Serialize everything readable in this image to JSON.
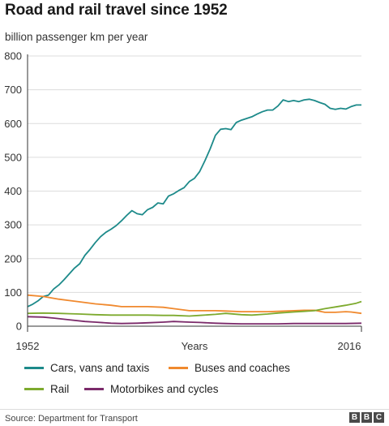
{
  "chart_data": {
    "type": "line",
    "title": "Road and rail travel since 1952",
    "ylabel": "billion passenger km per year",
    "xlabel": "Years",
    "x_start_label": "1952",
    "x_end_label": "2016",
    "xlim": [
      1952,
      2016
    ],
    "ylim": [
      0,
      800
    ],
    "yticks": [
      "0",
      "100",
      "200",
      "300",
      "400",
      "500",
      "600",
      "700",
      "800"
    ],
    "grid": true,
    "legend_position": "bottom",
    "source": "Source: Department for Transport",
    "series": [
      {
        "name": "Cars, vans and taxis",
        "color": "#1d8a8a",
        "points": [
          [
            1952,
            58
          ],
          [
            1953,
            65
          ],
          [
            1954,
            75
          ],
          [
            1955,
            88
          ],
          [
            1956,
            92
          ],
          [
            1957,
            110
          ],
          [
            1958,
            122
          ],
          [
            1959,
            138
          ],
          [
            1960,
            155
          ],
          [
            1961,
            172
          ],
          [
            1962,
            185
          ],
          [
            1963,
            210
          ],
          [
            1964,
            228
          ],
          [
            1965,
            248
          ],
          [
            1966,
            265
          ],
          [
            1967,
            278
          ],
          [
            1968,
            287
          ],
          [
            1969,
            298
          ],
          [
            1970,
            312
          ],
          [
            1971,
            328
          ],
          [
            1972,
            342
          ],
          [
            1973,
            333
          ],
          [
            1974,
            330
          ],
          [
            1975,
            345
          ],
          [
            1976,
            352
          ],
          [
            1977,
            365
          ],
          [
            1978,
            362
          ],
          [
            1979,
            385
          ],
          [
            1980,
            392
          ],
          [
            1981,
            402
          ],
          [
            1982,
            410
          ],
          [
            1983,
            428
          ],
          [
            1984,
            438
          ],
          [
            1985,
            458
          ],
          [
            1986,
            490
          ],
          [
            1987,
            525
          ],
          [
            1988,
            565
          ],
          [
            1989,
            583
          ],
          [
            1990,
            585
          ],
          [
            1991,
            582
          ],
          [
            1992,
            603
          ],
          [
            1993,
            610
          ],
          [
            1994,
            615
          ],
          [
            1995,
            620
          ],
          [
            1996,
            628
          ],
          [
            1997,
            635
          ],
          [
            1998,
            640
          ],
          [
            1999,
            640
          ],
          [
            2000,
            652
          ],
          [
            2001,
            670
          ],
          [
            2002,
            665
          ],
          [
            2003,
            668
          ],
          [
            2004,
            665
          ],
          [
            2005,
            670
          ],
          [
            2006,
            672
          ],
          [
            2007,
            668
          ],
          [
            2008,
            662
          ],
          [
            2009,
            657
          ],
          [
            2010,
            645
          ],
          [
            2011,
            642
          ],
          [
            2012,
            645
          ],
          [
            2013,
            643
          ],
          [
            2014,
            650
          ],
          [
            2015,
            655
          ],
          [
            2016,
            655
          ]
        ]
      },
      {
        "name": "Buses and coaches",
        "color": "#f0892e",
        "points": [
          [
            1952,
            92
          ],
          [
            1955,
            88
          ],
          [
            1958,
            80
          ],
          [
            1960,
            76
          ],
          [
            1962,
            72
          ],
          [
            1965,
            66
          ],
          [
            1968,
            62
          ],
          [
            1970,
            58
          ],
          [
            1973,
            58
          ],
          [
            1975,
            58
          ],
          [
            1978,
            56
          ],
          [
            1980,
            52
          ],
          [
            1983,
            46
          ],
          [
            1985,
            46
          ],
          [
            1988,
            46
          ],
          [
            1990,
            45
          ],
          [
            1993,
            43
          ],
          [
            1995,
            43
          ],
          [
            1998,
            43
          ],
          [
            2000,
            44
          ],
          [
            2003,
            46
          ],
          [
            2005,
            47
          ],
          [
            2007,
            47
          ],
          [
            2009,
            41
          ],
          [
            2011,
            41
          ],
          [
            2013,
            43
          ],
          [
            2014,
            42
          ],
          [
            2016,
            38
          ]
        ]
      },
      {
        "name": "Rail",
        "color": "#7daa2e",
        "points": [
          [
            1952,
            38
          ],
          [
            1955,
            39
          ],
          [
            1958,
            38
          ],
          [
            1960,
            37
          ],
          [
            1962,
            36
          ],
          [
            1965,
            34
          ],
          [
            1968,
            33
          ],
          [
            1970,
            33
          ],
          [
            1973,
            33
          ],
          [
            1975,
            33
          ],
          [
            1978,
            32
          ],
          [
            1980,
            32
          ],
          [
            1983,
            30
          ],
          [
            1985,
            32
          ],
          [
            1988,
            35
          ],
          [
            1990,
            38
          ],
          [
            1993,
            34
          ],
          [
            1995,
            33
          ],
          [
            1998,
            36
          ],
          [
            2000,
            39
          ],
          [
            2003,
            42
          ],
          [
            2005,
            44
          ],
          [
            2007,
            46
          ],
          [
            2009,
            52
          ],
          [
            2011,
            57
          ],
          [
            2013,
            62
          ],
          [
            2015,
            68
          ],
          [
            2016,
            73
          ]
        ]
      },
      {
        "name": "Motorbikes and cycles",
        "color": "#7b2a6a",
        "points": [
          [
            1952,
            28
          ],
          [
            1955,
            27
          ],
          [
            1957,
            24
          ],
          [
            1960,
            19
          ],
          [
            1963,
            14
          ],
          [
            1965,
            12
          ],
          [
            1968,
            9
          ],
          [
            1970,
            8
          ],
          [
            1973,
            9
          ],
          [
            1975,
            10
          ],
          [
            1978,
            12
          ],
          [
            1980,
            14
          ],
          [
            1983,
            12
          ],
          [
            1985,
            11
          ],
          [
            1988,
            9
          ],
          [
            1990,
            8
          ],
          [
            1993,
            7
          ],
          [
            1995,
            7
          ],
          [
            1998,
            7
          ],
          [
            2000,
            7
          ],
          [
            2003,
            8
          ],
          [
            2005,
            8
          ],
          [
            2008,
            8
          ],
          [
            2010,
            8
          ],
          [
            2013,
            8
          ],
          [
            2016,
            9
          ]
        ]
      }
    ]
  }
}
